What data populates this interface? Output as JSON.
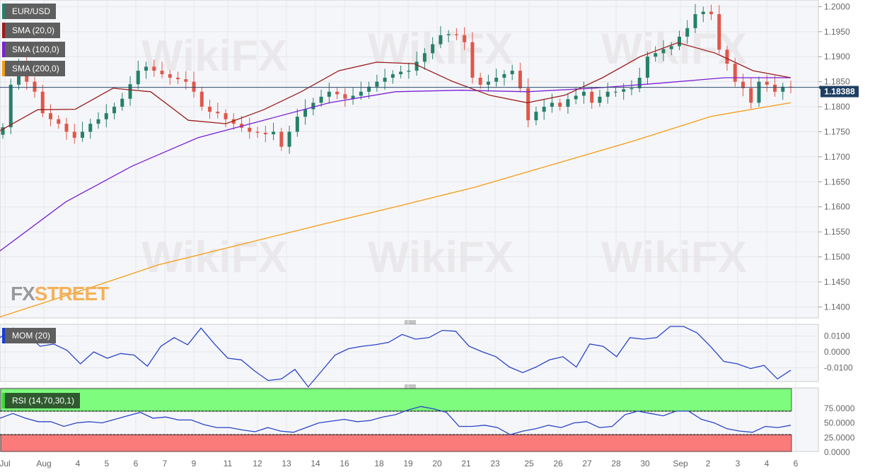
{
  "chart_data": {
    "type": "candlestick",
    "symbol": "EUR/USD",
    "legend": [
      {
        "label": "EUR/USD",
        "color": "#26806a"
      },
      {
        "label": "SMA (20,0)",
        "color": "#9b1c1c"
      },
      {
        "label": "SMA (100,0)",
        "color": "#7a1fd6"
      },
      {
        "label": "SMA (200,0)",
        "color": "#f59b14"
      }
    ],
    "last_price": "1.18388",
    "y_ticks": [
      "1.2000",
      "1.1950",
      "1.1900",
      "1.1850",
      "1.1800",
      "1.1750",
      "1.1700",
      "1.1650",
      "1.1600",
      "1.1550",
      "1.1500",
      "1.1450",
      "1.1400"
    ],
    "ylim": [
      1.137,
      1.2013
    ],
    "x_labels": [
      "Jul",
      "Aug",
      "4",
      "5",
      "6",
      "7",
      "9",
      "11",
      "12",
      "13",
      "14",
      "16",
      "18",
      "19",
      "20",
      "21",
      "23",
      "25",
      "26",
      "27",
      "28",
      "30",
      "Sep",
      "2",
      "3",
      "4",
      "6"
    ],
    "closes": [
      1.1759,
      1.1844,
      1.188,
      1.185,
      1.183,
      1.1787,
      1.1775,
      1.1766,
      1.175,
      1.1738,
      1.175,
      1.1766,
      1.1775,
      1.1787,
      1.18,
      1.1816,
      1.1845,
      1.1872,
      1.188,
      1.1872,
      1.1865,
      1.1858,
      1.1855,
      1.185,
      1.183,
      1.18,
      1.179,
      1.1787,
      1.1775,
      1.1766,
      1.1758,
      1.175,
      1.1748,
      1.1745,
      1.175,
      1.172,
      1.175,
      1.178,
      1.1795,
      1.1808,
      1.182,
      1.183,
      1.1825,
      1.1816,
      1.1822,
      1.183,
      1.184,
      1.185,
      1.1858,
      1.1865,
      1.187,
      1.1872,
      1.189,
      1.1907,
      1.1925,
      1.1943,
      1.1945,
      1.1943,
      1.1929,
      1.1858,
      1.1844,
      1.185,
      1.1858,
      1.1865,
      1.1872,
      1.1837,
      1.1773,
      1.179,
      1.18,
      1.1808,
      1.18,
      1.1815,
      1.1822,
      1.183,
      1.1808,
      1.182,
      1.183,
      1.183,
      1.1835,
      1.1837,
      1.1858,
      1.19,
      1.1907,
      1.1915,
      1.1921,
      1.194,
      1.1957,
      1.1985,
      1.199,
      1.1985,
      1.1914,
      1.1886,
      1.185,
      1.1837,
      1.1808,
      1.185,
      1.1844,
      1.183,
      1.184,
      1.18388
    ],
    "sma20": [
      1.1752,
      1.1794,
      1.1795,
      1.1837,
      1.183,
      1.1773,
      1.1766,
      1.1794,
      1.183,
      1.1872,
      1.1889,
      1.1886,
      1.1851,
      1.1823,
      1.1808,
      1.1823,
      1.1858,
      1.19,
      1.1928,
      1.1907,
      1.1872,
      1.1858
    ],
    "sma100": [
      1.1512,
      1.161,
      1.1681,
      1.1738,
      1.1773,
      1.1808,
      1.183,
      1.1833,
      1.183,
      1.1837,
      1.1847,
      1.1858,
      1.1858
    ],
    "sma200": [
      1.138,
      1.1431,
      1.1484,
      1.1523,
      1.1562,
      1.16,
      1.1639,
      1.1685,
      1.1731,
      1.1781,
      1.1808
    ],
    "mom": {
      "label": "MOM (20)",
      "ticks": [
        "0.0100",
        "0.0000",
        "-0.0100"
      ],
      "ylim": [
        -0.025,
        0.018
      ],
      "values": [
        0.009,
        0.015,
        0.011,
        0.0035,
        0.005,
        0.001,
        -0.0075,
        0.0,
        -0.004,
        -0.001,
        -0.002,
        -0.009,
        0.0035,
        0.009,
        0.0045,
        0.015,
        0.005,
        -0.004,
        -0.005,
        -0.012,
        -0.018,
        -0.017,
        -0.011,
        -0.022,
        -0.012,
        -0.002,
        0.002,
        0.0035,
        0.0045,
        0.006,
        0.011,
        0.008,
        0.009,
        0.0135,
        0.013,
        0.0035,
        0.0,
        -0.003,
        -0.0095,
        -0.013,
        -0.0095,
        -0.005,
        -0.003,
        -0.0095,
        0.005,
        0.0035,
        -0.003,
        0.009,
        0.008,
        0.009,
        0.016,
        0.016,
        0.012,
        0.0035,
        -0.006,
        -0.0075,
        -0.0105,
        -0.0085,
        -0.017,
        -0.0115
      ]
    },
    "rsi": {
      "label": "RSI (14,70,30,1)",
      "ticks": [
        "75.0000",
        "50.0000",
        "25.0000",
        "0.0000"
      ],
      "overbought": 70,
      "oversold": 30,
      "ylim": [
        0,
        100
      ],
      "values": [
        58,
        66,
        58,
        52,
        52,
        44,
        50,
        52,
        50,
        56,
        62,
        68,
        58,
        60,
        55,
        55,
        47,
        42,
        42,
        38,
        35,
        42,
        36,
        34,
        42,
        50,
        53,
        56,
        52,
        54,
        60,
        64,
        72,
        78,
        74,
        68,
        44,
        44,
        46,
        42,
        30,
        36,
        40,
        46,
        42,
        50,
        52,
        42,
        44,
        64,
        70,
        66,
        62,
        70,
        70,
        56,
        50,
        40,
        36,
        34,
        44,
        42,
        46
      ],
      "zone_colors": {
        "overbought": "#7dfc7d",
        "oversold": "#fb7b7b"
      }
    }
  },
  "watermark": "WikiFX",
  "logo": {
    "fx": "FX",
    "street": "STREET"
  }
}
